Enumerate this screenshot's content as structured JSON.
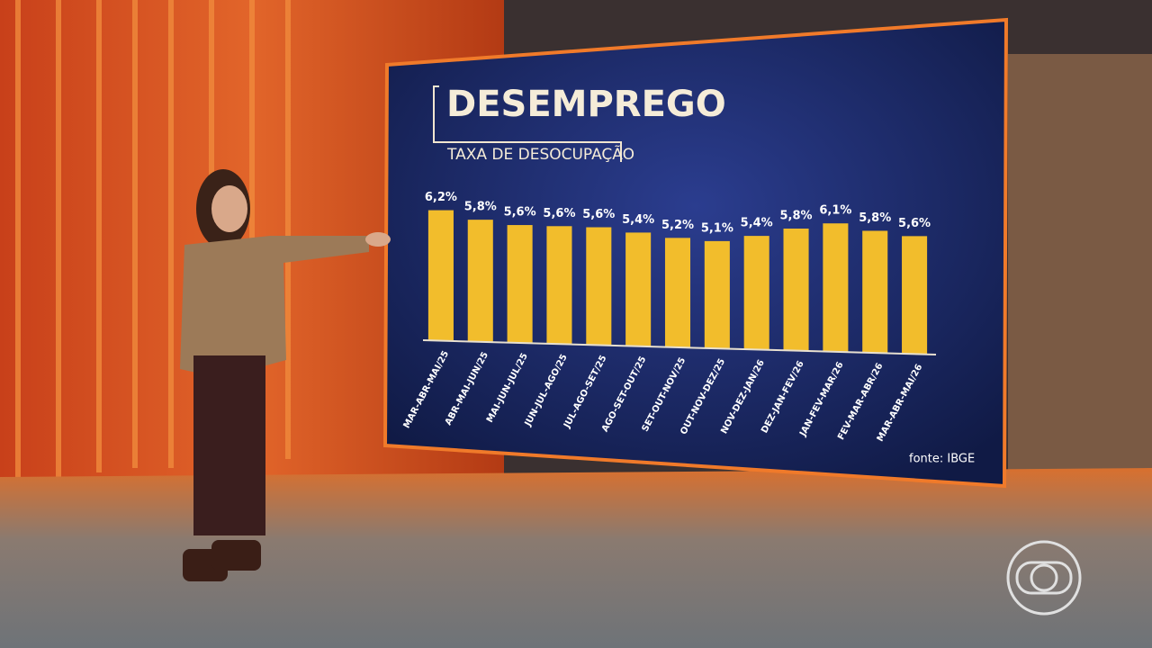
{
  "chart_data": {
    "type": "bar",
    "title": "DESEMPREGO",
    "subtitle": "TAXA DE DESOCUPAÇÃO",
    "categories": [
      "MAR-ABR-MAI/25",
      "ABR-MAI-JUN/25",
      "MAI-JUN-JUL/25",
      "JUN-JUL-AGO/25",
      "JUL-AGO-SET/25",
      "AGO-SET-OUT/25",
      "SET-OUT-NOV/25",
      "OUT-NOV-DEZ/25",
      "NOV-DEZ-JAN/26",
      "DEZ-JAN-FEV/26",
      "JAN-FEV-MAR/26",
      "FEV-MAR-ABR/26",
      "MAR-ABR-MAI/26"
    ],
    "values": [
      6.2,
      5.8,
      5.6,
      5.6,
      5.6,
      5.4,
      5.2,
      5.1,
      5.4,
      5.8,
      6.1,
      5.8,
      5.6
    ],
    "value_labels": [
      "6,2%",
      "5,8%",
      "5,6%",
      "5,6%",
      "5,6%",
      "5,4%",
      "5,2%",
      "5,1%",
      "5,4%",
      "5,8%",
      "6,1%",
      "5,8%",
      "5,6%"
    ],
    "color": "#f2bd2c",
    "source": "fonte: IBGE"
  }
}
